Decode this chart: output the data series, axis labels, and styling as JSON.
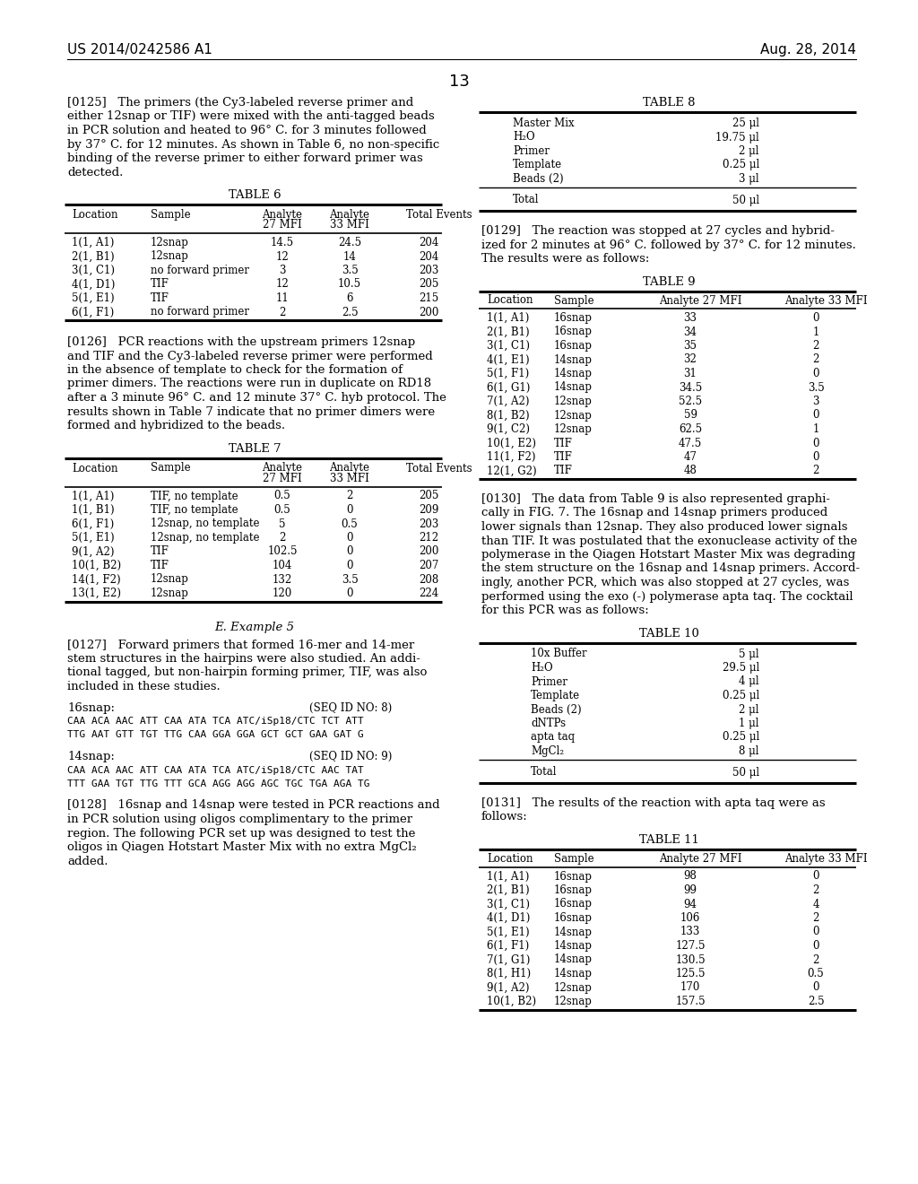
{
  "page_header_left": "US 2014/0242586 A1",
  "page_header_right": "Aug. 28, 2014",
  "page_number": "13",
  "background_color": "#ffffff",
  "table6": {
    "rows": [
      [
        "1(1, A1)",
        "12snap",
        "14.5",
        "24.5",
        "204"
      ],
      [
        "2(1, B1)",
        "12snap",
        "12",
        "14",
        "204"
      ],
      [
        "3(1, C1)",
        "no forward primer",
        "3",
        "3.5",
        "203"
      ],
      [
        "4(1, D1)",
        "TIF",
        "12",
        "10.5",
        "205"
      ],
      [
        "5(1, E1)",
        "TIF",
        "11",
        "6",
        "215"
      ],
      [
        "6(1, F1)",
        "no forward primer",
        "2",
        "2.5",
        "200"
      ]
    ]
  },
  "table7": {
    "rows": [
      [
        "1(1, A1)",
        "TIF, no template",
        "0.5",
        "2",
        "205"
      ],
      [
        "1(1, B1)",
        "TIF, no template",
        "0.5",
        "0",
        "209"
      ],
      [
        "6(1, F1)",
        "12snap, no template",
        "5",
        "0.5",
        "203"
      ],
      [
        "5(1, E1)",
        "12snap, no template",
        "2",
        "0",
        "212"
      ],
      [
        "9(1, A2)",
        "TIF",
        "102.5",
        "0",
        "200"
      ],
      [
        "10(1, B2)",
        "TIF",
        "104",
        "0",
        "207"
      ],
      [
        "14(1, F2)",
        "12snap",
        "132",
        "3.5",
        "208"
      ],
      [
        "13(1, E2)",
        "12snap",
        "120",
        "0",
        "224"
      ]
    ]
  },
  "table8": {
    "rows": [
      [
        "Master Mix",
        "25 μl"
      ],
      [
        "H₂O",
        "19.75 μl"
      ],
      [
        "Primer",
        "2 μl"
      ],
      [
        "Template",
        "0.25 μl"
      ],
      [
        "Beads (2)",
        "3 μl"
      ],
      [
        "Total",
        "50 μl"
      ]
    ]
  },
  "table9": {
    "rows": [
      [
        "1(1, A1)",
        "16snap",
        "33",
        "0"
      ],
      [
        "2(1, B1)",
        "16snap",
        "34",
        "1"
      ],
      [
        "3(1, C1)",
        "16snap",
        "35",
        "2"
      ],
      [
        "4(1, E1)",
        "14snap",
        "32",
        "2"
      ],
      [
        "5(1, F1)",
        "14snap",
        "31",
        "0"
      ],
      [
        "6(1, G1)",
        "14snap",
        "34.5",
        "3.5"
      ],
      [
        "7(1, A2)",
        "12snap",
        "52.5",
        "3"
      ],
      [
        "8(1, B2)",
        "12snap",
        "59",
        "0"
      ],
      [
        "9(1, C2)",
        "12snap",
        "62.5",
        "1"
      ],
      [
        "10(1, E2)",
        "TIF",
        "47.5",
        "0"
      ],
      [
        "11(1, F2)",
        "TIF",
        "47",
        "0"
      ],
      [
        "12(1, G2)",
        "TIF",
        "48",
        "2"
      ]
    ]
  },
  "table10": {
    "rows": [
      [
        "10x Buffer",
        "5 μl"
      ],
      [
        "H₂O",
        "29.5 μl"
      ],
      [
        "Primer",
        "4 μl"
      ],
      [
        "Template",
        "0.25 μl"
      ],
      [
        "Beads (2)",
        "2 μl"
      ],
      [
        "dNTPs",
        "1 μl"
      ],
      [
        "apta taq",
        "0.25 μl"
      ],
      [
        "MgCl₂",
        "8 μl"
      ],
      [
        "Total",
        "50 μl"
      ]
    ]
  },
  "table11": {
    "rows": [
      [
        "1(1, A1)",
        "16snap",
        "98",
        "0"
      ],
      [
        "2(1, B1)",
        "16snap",
        "99",
        "2"
      ],
      [
        "3(1, C1)",
        "16snap",
        "94",
        "4"
      ],
      [
        "4(1, D1)",
        "16snap",
        "106",
        "2"
      ],
      [
        "5(1, E1)",
        "14snap",
        "133",
        "0"
      ],
      [
        "6(1, F1)",
        "14snap",
        "127.5",
        "0"
      ],
      [
        "7(1, G1)",
        "14snap",
        "130.5",
        "2"
      ],
      [
        "8(1, H1)",
        "14snap",
        "125.5",
        "0.5"
      ],
      [
        "9(1, A2)",
        "12snap",
        "170",
        "0"
      ],
      [
        "10(1, B2)",
        "12snap",
        "157.5",
        "2.5"
      ]
    ]
  },
  "lines_125": [
    "[0125]   The primers (the Cy3-labeled reverse primer and",
    "either 12snap or TIF) were mixed with the anti-tagged beads",
    "in PCR solution and heated to 96° C. for 3 minutes followed",
    "by 37° C. for 12 minutes. As shown in Table 6, no non-specific",
    "binding of the reverse primer to either forward primer was",
    "detected."
  ],
  "lines_126": [
    "[0126]   PCR reactions with the upstream primers 12snap",
    "and TIF and the Cy3-labeled reverse primer were performed",
    "in the absence of template to check for the formation of",
    "primer dimers. The reactions were run in duplicate on RD18",
    "after a 3 minute 96° C. and 12 minute 37° C. hyb protocol. The",
    "results shown in Table 7 indicate that no primer dimers were",
    "formed and hybridized to the beads."
  ],
  "lines_127": [
    "[0127]   Forward primers that formed 16-mer and 14-mer",
    "stem structures in the hairpins were also studied. An addi-",
    "tional tagged, but non-hairpin forming primer, TIF, was also",
    "included in these studies."
  ],
  "lines_128": [
    "[0128]   16snap and 14snap were tested in PCR reactions and",
    "in PCR solution using oligos complimentary to the primer",
    "region. The following PCR set up was designed to test the",
    "oligos in Qiagen Hotstart Master Mix with no extra MgCl₂",
    "added."
  ],
  "lines_129": [
    "[0129]   The reaction was stopped at 27 cycles and hybrid-",
    "ized for 2 minutes at 96° C. followed by 37° C. for 12 minutes.",
    "The results were as follows:"
  ],
  "lines_130": [
    "[0130]   The data from Table 9 is also represented graphi-",
    "cally in FIG. 7. The 16snap and 14snap primers produced",
    "lower signals than 12snap. They also produced lower signals",
    "than TIF. It was postulated that the exonuclease activity of the",
    "polymerase in the Qiagen Hotstart Master Mix was degrading",
    "the stem structure on the 16snap and 14snap primers. Accord-",
    "ingly, another PCR, which was also stopped at 27 cycles, was",
    "performed using the exo (-) polymerase apta taq. The cocktail",
    "for this PCR was as follows:"
  ],
  "lines_131": [
    "[0131]   The results of the reaction with apta taq were as",
    "follows:"
  ],
  "seq16_label": "16snap:",
  "seq16_id": "(SEQ ID NO: 8)",
  "seq16_line1": "CAA ACA AAC ATT CAA ATA TCA ATC/iSp18/CTC TCT ATT",
  "seq16_line2": "TTG AAT GTT TGT TTG CAA GGA GGA GCT GCT GAA GAT G",
  "seq14_label": "14snap:",
  "seq14_id": "(SEQ ID NO: 9)",
  "seq14_line1": "CAA ACA AAC ATT CAA ATA TCA ATC/iSp18/CTC AAC TAT",
  "seq14_line2": "TTT GAA TGT TTG TTT GCA AGG AGG AGC TGC TGA AGA TG"
}
